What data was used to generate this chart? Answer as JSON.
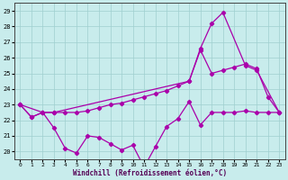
{
  "xlabel": "Windchill (Refroidissement éolien,°C)",
  "background_color": "#c8ecec",
  "line_color": "#aa00aa",
  "xlim_min": -0.5,
  "xlim_max": 23.5,
  "ylim_min": 19.5,
  "ylim_max": 29.5,
  "xticks": [
    0,
    1,
    2,
    3,
    4,
    5,
    6,
    7,
    8,
    9,
    10,
    11,
    12,
    13,
    14,
    15,
    16,
    17,
    18,
    19,
    20,
    21,
    22,
    23
  ],
  "yticks": [
    20,
    21,
    22,
    23,
    24,
    25,
    26,
    27,
    28,
    29
  ],
  "line1_x": [
    0,
    1,
    2,
    3,
    4,
    5,
    6,
    7,
    8,
    9,
    10,
    11,
    12,
    13,
    14,
    15,
    16,
    17,
    18,
    19,
    20,
    21,
    22,
    23
  ],
  "line1_y": [
    23.0,
    22.2,
    22.5,
    21.5,
    20.2,
    19.9,
    21.0,
    20.9,
    20.5,
    20.1,
    20.4,
    19.0,
    20.3,
    21.6,
    22.1,
    23.2,
    21.7,
    22.5,
    22.5,
    22.5,
    22.6,
    22.5,
    22.5,
    22.5
  ],
  "line2_x": [
    0,
    1,
    2,
    3,
    4,
    5,
    6,
    7,
    8,
    9,
    10,
    11,
    12,
    13,
    14,
    15,
    16,
    17,
    18,
    19,
    20,
    21,
    22,
    23
  ],
  "line2_y": [
    23.0,
    22.2,
    22.5,
    22.5,
    22.5,
    22.5,
    22.6,
    22.8,
    23.0,
    23.1,
    23.3,
    23.5,
    23.7,
    23.9,
    24.2,
    24.5,
    26.5,
    25.0,
    25.2,
    25.4,
    25.6,
    25.3,
    23.5,
    22.5
  ],
  "line3_x": [
    0,
    2,
    3,
    15,
    16,
    17,
    18,
    20,
    21,
    23
  ],
  "line3_y": [
    23.0,
    22.5,
    22.5,
    24.5,
    26.6,
    28.2,
    28.9,
    25.5,
    25.2,
    22.5
  ]
}
